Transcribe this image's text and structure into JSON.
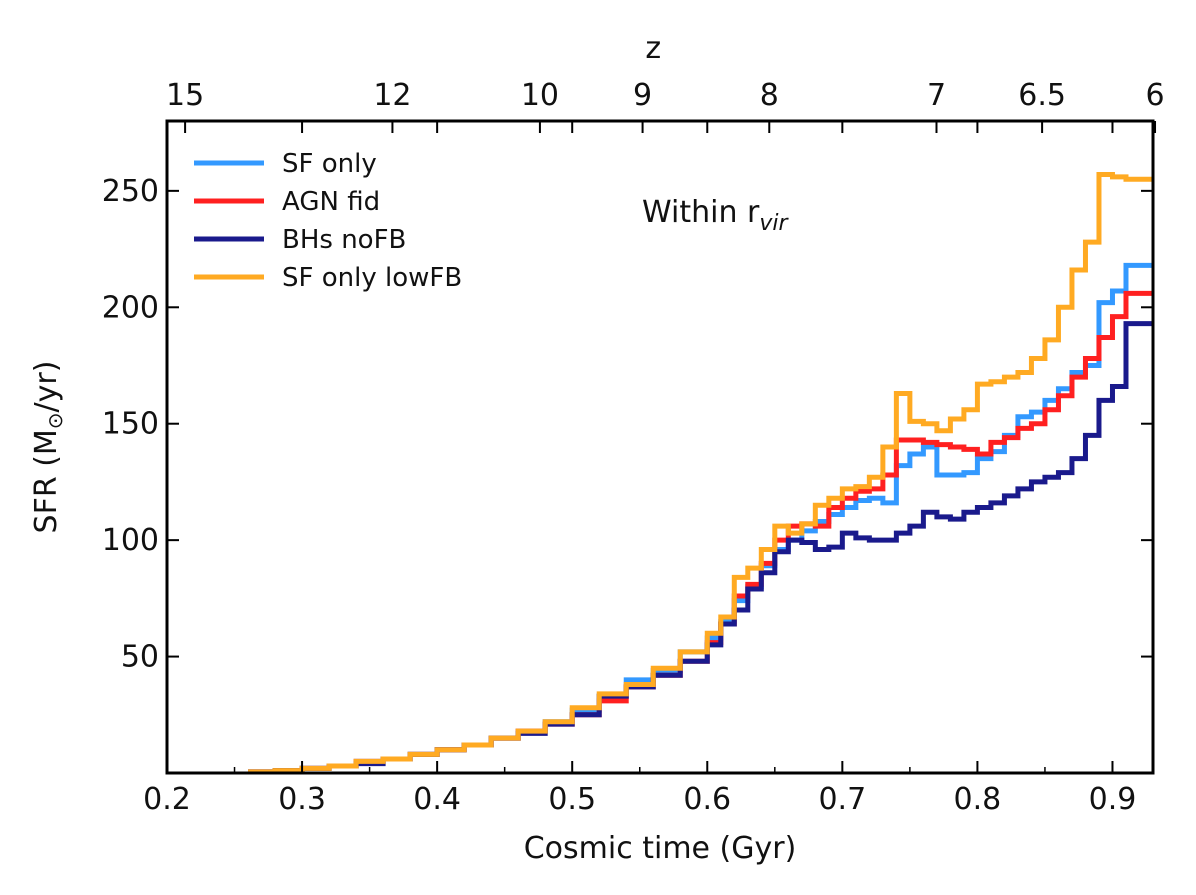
{
  "chart_data": {
    "type": "line",
    "step": true,
    "xlabel": "Cosmic time (Gyr)",
    "ylabel_main": "SFR (M",
    "ylabel_sub": "⊙",
    "ylabel_tail": "/yr)",
    "xlim": [
      0.2,
      0.93
    ],
    "ylim": [
      0,
      280
    ],
    "x_ticks": [
      0.2,
      0.3,
      0.4,
      0.5,
      0.6,
      0.7,
      0.8,
      0.9
    ],
    "x_tick_labels": [
      "0.2",
      "0.3",
      "0.4",
      "0.5",
      "0.6",
      "0.7",
      "0.8",
      "0.9"
    ],
    "y_ticks": [
      50,
      100,
      150,
      200,
      250
    ],
    "y_tick_labels": [
      "50",
      "100",
      "150",
      "200",
      "250"
    ],
    "top_axis": {
      "label": "z",
      "ticks": [
        {
          "t": 0.2134,
          "label": "15"
        },
        {
          "t": 0.3669,
          "label": "12"
        },
        {
          "t": 0.4761,
          "label": "10"
        },
        {
          "t": 0.5521,
          "label": "9"
        },
        {
          "t": 0.6459,
          "label": "8"
        },
        {
          "t": 0.7697,
          "label": "7"
        },
        {
          "t": 0.8479,
          "label": "6.5"
        },
        {
          "t": 0.9315,
          "label": "6"
        }
      ]
    },
    "annotation": {
      "text": "Within r",
      "sub": "vir"
    },
    "legend_position": "upper-left",
    "grid": false,
    "series": [
      {
        "name": "SF only",
        "color": "#3399ff",
        "points": [
          [
            0.26,
            0.5
          ],
          [
            0.28,
            1
          ],
          [
            0.3,
            2
          ],
          [
            0.32,
            3
          ],
          [
            0.34,
            5
          ],
          [
            0.36,
            6
          ],
          [
            0.38,
            8
          ],
          [
            0.4,
            10
          ],
          [
            0.42,
            12
          ],
          [
            0.44,
            15
          ],
          [
            0.46,
            18
          ],
          [
            0.48,
            22
          ],
          [
            0.5,
            27
          ],
          [
            0.52,
            33
          ],
          [
            0.54,
            40
          ],
          [
            0.56,
            44
          ],
          [
            0.58,
            52
          ],
          [
            0.6,
            58
          ],
          [
            0.61,
            65
          ],
          [
            0.62,
            74
          ],
          [
            0.63,
            80
          ],
          [
            0.64,
            89
          ],
          [
            0.65,
            96
          ],
          [
            0.66,
            100
          ],
          [
            0.67,
            104
          ],
          [
            0.68,
            108
          ],
          [
            0.69,
            111
          ],
          [
            0.7,
            114
          ],
          [
            0.71,
            117
          ],
          [
            0.72,
            118
          ],
          [
            0.73,
            116
          ],
          [
            0.74,
            132
          ],
          [
            0.75,
            137
          ],
          [
            0.76,
            140
          ],
          [
            0.77,
            128
          ],
          [
            0.78,
            128
          ],
          [
            0.79,
            129
          ],
          [
            0.8,
            135
          ],
          [
            0.81,
            138
          ],
          [
            0.82,
            145
          ],
          [
            0.83,
            153
          ],
          [
            0.84,
            155
          ],
          [
            0.85,
            160
          ],
          [
            0.86,
            165
          ],
          [
            0.87,
            172
          ],
          [
            0.88,
            175
          ],
          [
            0.89,
            202
          ],
          [
            0.9,
            207
          ],
          [
            0.91,
            218
          ],
          [
            0.93,
            218
          ]
        ]
      },
      {
        "name": "AGN fid",
        "color": "#ff2020",
        "points": [
          [
            0.26,
            0.5
          ],
          [
            0.28,
            1
          ],
          [
            0.3,
            2
          ],
          [
            0.32,
            3
          ],
          [
            0.34,
            5
          ],
          [
            0.36,
            6
          ],
          [
            0.38,
            8
          ],
          [
            0.4,
            10
          ],
          [
            0.42,
            12
          ],
          [
            0.44,
            15
          ],
          [
            0.46,
            18
          ],
          [
            0.48,
            21
          ],
          [
            0.5,
            25
          ],
          [
            0.52,
            31
          ],
          [
            0.54,
            37
          ],
          [
            0.56,
            42
          ],
          [
            0.58,
            48
          ],
          [
            0.6,
            56
          ],
          [
            0.61,
            64
          ],
          [
            0.62,
            76
          ],
          [
            0.63,
            81
          ],
          [
            0.64,
            90
          ],
          [
            0.65,
            100
          ],
          [
            0.66,
            106
          ],
          [
            0.67,
            107
          ],
          [
            0.68,
            106
          ],
          [
            0.69,
            114
          ],
          [
            0.7,
            118
          ],
          [
            0.71,
            121
          ],
          [
            0.72,
            122
          ],
          [
            0.73,
            128
          ],
          [
            0.74,
            143
          ],
          [
            0.75,
            143
          ],
          [
            0.76,
            142
          ],
          [
            0.77,
            141
          ],
          [
            0.78,
            140
          ],
          [
            0.79,
            139
          ],
          [
            0.8,
            137
          ],
          [
            0.81,
            142
          ],
          [
            0.82,
            144
          ],
          [
            0.83,
            148
          ],
          [
            0.84,
            150
          ],
          [
            0.85,
            156
          ],
          [
            0.86,
            162
          ],
          [
            0.87,
            170
          ],
          [
            0.88,
            178
          ],
          [
            0.89,
            187
          ],
          [
            0.9,
            196
          ],
          [
            0.91,
            206
          ],
          [
            0.93,
            206
          ]
        ]
      },
      {
        "name": "BHs noFB",
        "color": "#1a1a8c",
        "points": [
          [
            0.26,
            0.5
          ],
          [
            0.28,
            1
          ],
          [
            0.3,
            2
          ],
          [
            0.32,
            3
          ],
          [
            0.34,
            4
          ],
          [
            0.36,
            6
          ],
          [
            0.38,
            8
          ],
          [
            0.4,
            10
          ],
          [
            0.42,
            12
          ],
          [
            0.44,
            15
          ],
          [
            0.46,
            17
          ],
          [
            0.48,
            21
          ],
          [
            0.5,
            25
          ],
          [
            0.52,
            33
          ],
          [
            0.54,
            37
          ],
          [
            0.56,
            42
          ],
          [
            0.58,
            48
          ],
          [
            0.6,
            55
          ],
          [
            0.61,
            64
          ],
          [
            0.62,
            70
          ],
          [
            0.63,
            79
          ],
          [
            0.64,
            86
          ],
          [
            0.65,
            95
          ],
          [
            0.66,
            100
          ],
          [
            0.67,
            99
          ],
          [
            0.68,
            96
          ],
          [
            0.69,
            97
          ],
          [
            0.7,
            103
          ],
          [
            0.71,
            101
          ],
          [
            0.72,
            100
          ],
          [
            0.73,
            100
          ],
          [
            0.74,
            103
          ],
          [
            0.75,
            106
          ],
          [
            0.76,
            112
          ],
          [
            0.77,
            110
          ],
          [
            0.78,
            109
          ],
          [
            0.79,
            112
          ],
          [
            0.8,
            114
          ],
          [
            0.81,
            116
          ],
          [
            0.82,
            119
          ],
          [
            0.83,
            122
          ],
          [
            0.84,
            125
          ],
          [
            0.85,
            127
          ],
          [
            0.86,
            129
          ],
          [
            0.87,
            135
          ],
          [
            0.88,
            145
          ],
          [
            0.89,
            160
          ],
          [
            0.9,
            166
          ],
          [
            0.91,
            193
          ],
          [
            0.93,
            193
          ]
        ]
      },
      {
        "name": "SF only lowFB",
        "color": "#ffaa22",
        "points": [
          [
            0.26,
            0.5
          ],
          [
            0.28,
            1
          ],
          [
            0.3,
            2
          ],
          [
            0.32,
            3
          ],
          [
            0.34,
            5
          ],
          [
            0.36,
            6
          ],
          [
            0.38,
            8
          ],
          [
            0.4,
            10
          ],
          [
            0.42,
            12
          ],
          [
            0.44,
            15
          ],
          [
            0.46,
            18
          ],
          [
            0.48,
            22
          ],
          [
            0.5,
            28
          ],
          [
            0.52,
            34
          ],
          [
            0.54,
            38
          ],
          [
            0.56,
            45
          ],
          [
            0.58,
            52
          ],
          [
            0.6,
            60
          ],
          [
            0.61,
            67
          ],
          [
            0.62,
            84
          ],
          [
            0.63,
            88
          ],
          [
            0.64,
            96
          ],
          [
            0.65,
            106
          ],
          [
            0.66,
            103
          ],
          [
            0.67,
            107
          ],
          [
            0.68,
            115
          ],
          [
            0.69,
            118
          ],
          [
            0.7,
            122
          ],
          [
            0.71,
            123
          ],
          [
            0.72,
            127
          ],
          [
            0.73,
            140
          ],
          [
            0.74,
            163
          ],
          [
            0.75,
            151
          ],
          [
            0.76,
            150
          ],
          [
            0.77,
            147
          ],
          [
            0.78,
            152
          ],
          [
            0.79,
            156
          ],
          [
            0.8,
            167
          ],
          [
            0.81,
            168
          ],
          [
            0.82,
            170
          ],
          [
            0.83,
            172
          ],
          [
            0.84,
            178
          ],
          [
            0.85,
            186
          ],
          [
            0.86,
            200
          ],
          [
            0.87,
            216
          ],
          [
            0.88,
            228
          ],
          [
            0.89,
            257
          ],
          [
            0.9,
            256
          ],
          [
            0.91,
            255
          ],
          [
            0.93,
            255
          ]
        ]
      }
    ]
  }
}
